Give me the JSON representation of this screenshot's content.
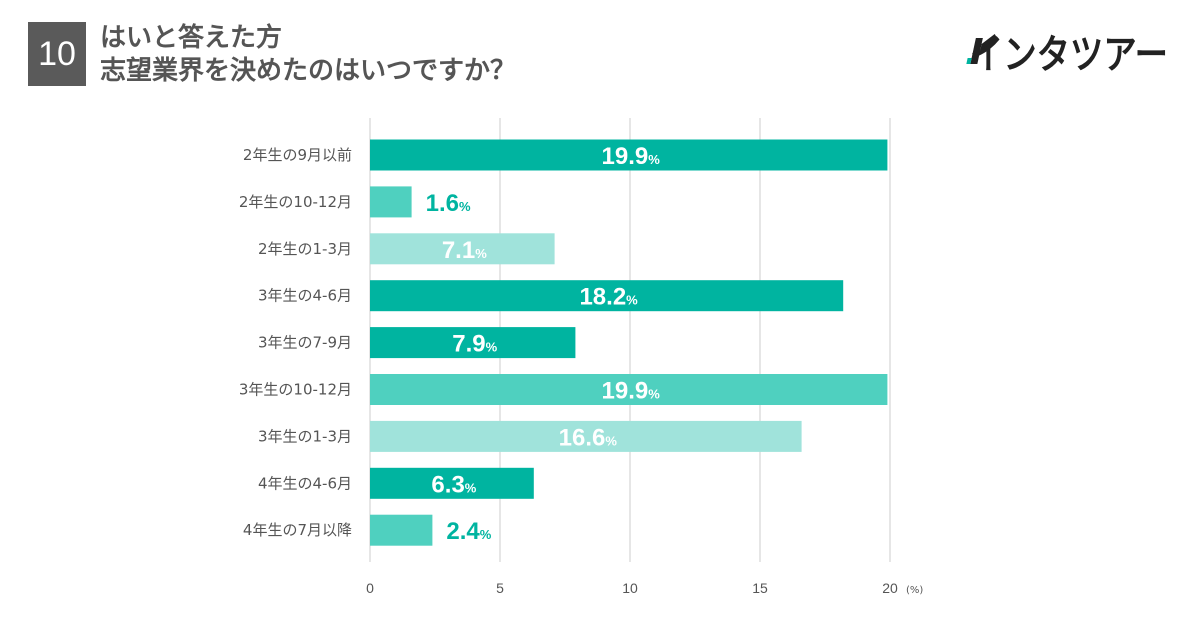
{
  "header": {
    "number": "10",
    "title_line1": "はいと答えた方",
    "title_line2": "志望業界を決めたのはいつですか？"
  },
  "logo": {
    "text": "インタツアー",
    "icon": "intatour-logo"
  },
  "colors": {
    "dark": "#00b4a0",
    "mid": "#4fd0bf",
    "light": "#a0e3db",
    "grid": "#cccccc",
    "text": "#555555"
  },
  "chart_data": {
    "type": "bar",
    "orientation": "horizontal",
    "categories": [
      "2年生の9月以前",
      "2年生の10-12月",
      "2年生の1-3月",
      "3年生の4-6月",
      "3年生の7-9月",
      "3年生の10-12月",
      "3年生の1-3月",
      "4年生の4-6月",
      "4年生の7月以降"
    ],
    "values": [
      19.9,
      1.6,
      7.1,
      18.2,
      7.9,
      19.9,
      16.6,
      6.3,
      2.4
    ],
    "value_labels": [
      "19.9",
      "1.6",
      "7.1",
      "18.2",
      "7.9",
      "19.9",
      "16.6",
      "6.3",
      "2.4"
    ],
    "value_suffix": "%",
    "bar_colors": [
      "#00b4a0",
      "#4fd0bf",
      "#a0e3db",
      "#00b4a0",
      "#00b4a0",
      "#4fd0bf",
      "#a0e3db",
      "#00b4a0",
      "#4fd0bf"
    ],
    "xlim": [
      0,
      20
    ],
    "xticks": [
      "0",
      "5",
      "10",
      "15",
      "20"
    ],
    "xunit": "(%)",
    "grid": true
  }
}
